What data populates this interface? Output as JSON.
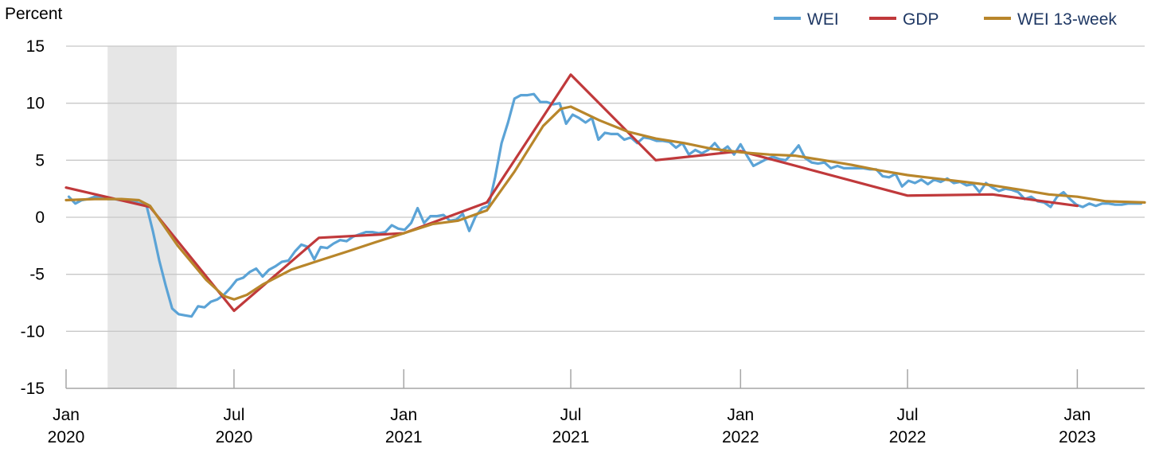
{
  "chart_data": {
    "type": "line",
    "ylabel": "Percent",
    "ylim": [
      -15,
      15
    ],
    "yticks": [
      15,
      10,
      5,
      0,
      -5,
      -10,
      -15
    ],
    "xlim": [
      "2020-01-01",
      "2023-03-15"
    ],
    "xticks": [
      {
        "date": "2020-01-01",
        "month": "Jan",
        "year": "2020"
      },
      {
        "date": "2020-07-01",
        "month": "Jul",
        "year": "2020"
      },
      {
        "date": "2021-01-01",
        "month": "Jan",
        "year": "2021"
      },
      {
        "date": "2021-07-01",
        "month": "Jul",
        "year": "2021"
      },
      {
        "date": "2022-01-01",
        "month": "Jan",
        "year": "2022"
      },
      {
        "date": "2022-07-01",
        "month": "Jul",
        "year": "2022"
      },
      {
        "date": "2023-01-01",
        "month": "Jan",
        "year": "2023"
      }
    ],
    "recession_shading": {
      "start": "2020-02-15",
      "end": "2020-04-30"
    },
    "grid": "horizontal",
    "legend_position": "top-right",
    "series": [
      {
        "name": "WEI",
        "color": "#5ba3d6",
        "points": [
          [
            "2020-01-04",
            1.8
          ],
          [
            "2020-01-11",
            1.2
          ],
          [
            "2020-01-18",
            1.5
          ],
          [
            "2020-01-25",
            1.6
          ],
          [
            "2020-02-01",
            1.8
          ],
          [
            "2020-02-08",
            1.7
          ],
          [
            "2020-02-15",
            1.6
          ],
          [
            "2020-02-22",
            1.6
          ],
          [
            "2020-02-29",
            1.5
          ],
          [
            "2020-03-07",
            1.5
          ],
          [
            "2020-03-14",
            1.4
          ],
          [
            "2020-03-21",
            1.2
          ],
          [
            "2020-03-28",
            1.1
          ],
          [
            "2020-04-04",
            -1.2
          ],
          [
            "2020-04-11",
            -3.8
          ],
          [
            "2020-04-18",
            -6.0
          ],
          [
            "2020-04-25",
            -8.0
          ],
          [
            "2020-05-02",
            -8.5
          ],
          [
            "2020-05-09",
            -8.6
          ],
          [
            "2020-05-16",
            -8.7
          ],
          [
            "2020-05-23",
            -7.8
          ],
          [
            "2020-05-30",
            -7.9
          ],
          [
            "2020-06-06",
            -7.4
          ],
          [
            "2020-06-13",
            -7.2
          ],
          [
            "2020-06-20",
            -6.8
          ],
          [
            "2020-06-27",
            -6.2
          ],
          [
            "2020-07-04",
            -5.5
          ],
          [
            "2020-07-11",
            -5.3
          ],
          [
            "2020-07-18",
            -4.8
          ],
          [
            "2020-07-25",
            -4.5
          ],
          [
            "2020-08-01",
            -5.2
          ],
          [
            "2020-08-08",
            -4.6
          ],
          [
            "2020-08-15",
            -4.3
          ],
          [
            "2020-08-22",
            -3.9
          ],
          [
            "2020-08-29",
            -3.8
          ],
          [
            "2020-09-05",
            -3.0
          ],
          [
            "2020-09-12",
            -2.4
          ],
          [
            "2020-09-19",
            -2.6
          ],
          [
            "2020-09-26",
            -3.7
          ],
          [
            "2020-10-03",
            -2.6
          ],
          [
            "2020-10-10",
            -2.7
          ],
          [
            "2020-10-17",
            -2.3
          ],
          [
            "2020-10-24",
            -2.0
          ],
          [
            "2020-10-31",
            -2.1
          ],
          [
            "2020-11-07",
            -1.7
          ],
          [
            "2020-11-14",
            -1.5
          ],
          [
            "2020-11-21",
            -1.3
          ],
          [
            "2020-11-28",
            -1.3
          ],
          [
            "2020-12-05",
            -1.4
          ],
          [
            "2020-12-12",
            -1.3
          ],
          [
            "2020-12-19",
            -0.7
          ],
          [
            "2020-12-26",
            -1.0
          ],
          [
            "2021-01-02",
            -1.1
          ],
          [
            "2021-01-09",
            -0.5
          ],
          [
            "2021-01-16",
            0.8
          ],
          [
            "2021-01-23",
            -0.5
          ],
          [
            "2021-01-30",
            0.1
          ],
          [
            "2021-02-06",
            0.1
          ],
          [
            "2021-02-13",
            0.2
          ],
          [
            "2021-02-20",
            -0.3
          ],
          [
            "2021-02-27",
            -0.2
          ],
          [
            "2021-03-06",
            0.3
          ],
          [
            "2021-03-13",
            -1.2
          ],
          [
            "2021-03-20",
            0.1
          ],
          [
            "2021-03-27",
            0.8
          ],
          [
            "2021-04-03",
            1.0
          ],
          [
            "2021-04-10",
            3.5
          ],
          [
            "2021-04-17",
            6.5
          ],
          [
            "2021-04-24",
            8.3
          ],
          [
            "2021-05-01",
            10.4
          ],
          [
            "2021-05-08",
            10.7
          ],
          [
            "2021-05-15",
            10.7
          ],
          [
            "2021-05-22",
            10.8
          ],
          [
            "2021-05-29",
            10.1
          ],
          [
            "2021-06-05",
            10.1
          ],
          [
            "2021-06-12",
            9.9
          ],
          [
            "2021-06-19",
            10.0
          ],
          [
            "2021-06-26",
            8.2
          ],
          [
            "2021-07-03",
            9.0
          ],
          [
            "2021-07-10",
            8.7
          ],
          [
            "2021-07-17",
            8.3
          ],
          [
            "2021-07-24",
            8.7
          ],
          [
            "2021-07-31",
            6.8
          ],
          [
            "2021-08-07",
            7.4
          ],
          [
            "2021-08-14",
            7.3
          ],
          [
            "2021-08-21",
            7.3
          ],
          [
            "2021-08-28",
            6.8
          ],
          [
            "2021-09-04",
            7.0
          ],
          [
            "2021-09-11",
            6.5
          ],
          [
            "2021-09-18",
            7.0
          ],
          [
            "2021-09-25",
            6.9
          ],
          [
            "2021-10-02",
            6.7
          ],
          [
            "2021-10-09",
            6.7
          ],
          [
            "2021-10-16",
            6.6
          ],
          [
            "2021-10-23",
            6.1
          ],
          [
            "2021-10-30",
            6.5
          ],
          [
            "2021-11-06",
            5.5
          ],
          [
            "2021-11-13",
            5.9
          ],
          [
            "2021-11-20",
            5.6
          ],
          [
            "2021-11-27",
            5.9
          ],
          [
            "2021-12-04",
            6.5
          ],
          [
            "2021-12-11",
            5.8
          ],
          [
            "2021-12-18",
            6.2
          ],
          [
            "2021-12-25",
            5.5
          ],
          [
            "2022-01-01",
            6.4
          ],
          [
            "2022-01-08",
            5.4
          ],
          [
            "2022-01-15",
            4.5
          ],
          [
            "2022-01-22",
            4.8
          ],
          [
            "2022-01-29",
            5.1
          ],
          [
            "2022-02-05",
            5.3
          ],
          [
            "2022-02-12",
            5.1
          ],
          [
            "2022-02-19",
            5.0
          ],
          [
            "2022-02-26",
            5.6
          ],
          [
            "2022-03-05",
            6.3
          ],
          [
            "2022-03-12",
            5.2
          ],
          [
            "2022-03-19",
            4.8
          ],
          [
            "2022-03-26",
            4.7
          ],
          [
            "2022-04-02",
            4.8
          ],
          [
            "2022-04-09",
            4.3
          ],
          [
            "2022-04-16",
            4.5
          ],
          [
            "2022-04-23",
            4.3
          ],
          [
            "2022-04-30",
            4.3
          ],
          [
            "2022-05-07",
            4.3
          ],
          [
            "2022-05-14",
            4.3
          ],
          [
            "2022-05-21",
            4.2
          ],
          [
            "2022-05-28",
            4.2
          ],
          [
            "2022-06-04",
            3.6
          ],
          [
            "2022-06-11",
            3.5
          ],
          [
            "2022-06-18",
            3.8
          ],
          [
            "2022-06-25",
            2.7
          ],
          [
            "2022-07-02",
            3.2
          ],
          [
            "2022-07-09",
            3.0
          ],
          [
            "2022-07-16",
            3.3
          ],
          [
            "2022-07-23",
            2.9
          ],
          [
            "2022-07-30",
            3.3
          ],
          [
            "2022-08-06",
            3.1
          ],
          [
            "2022-08-13",
            3.4
          ],
          [
            "2022-08-20",
            3.0
          ],
          [
            "2022-08-27",
            3.1
          ],
          [
            "2022-09-03",
            2.8
          ],
          [
            "2022-09-10",
            2.9
          ],
          [
            "2022-09-17",
            2.2
          ],
          [
            "2022-09-24",
            3.0
          ],
          [
            "2022-10-01",
            2.6
          ],
          [
            "2022-10-08",
            2.3
          ],
          [
            "2022-10-15",
            2.5
          ],
          [
            "2022-10-22",
            2.4
          ],
          [
            "2022-10-29",
            2.2
          ],
          [
            "2022-11-05",
            1.6
          ],
          [
            "2022-11-12",
            1.8
          ],
          [
            "2022-11-19",
            1.4
          ],
          [
            "2022-11-26",
            1.3
          ],
          [
            "2022-12-03",
            0.9
          ],
          [
            "2022-12-10",
            1.8
          ],
          [
            "2022-12-17",
            2.2
          ],
          [
            "2022-12-24",
            1.6
          ],
          [
            "2022-12-31",
            1.1
          ],
          [
            "2023-01-07",
            0.9
          ],
          [
            "2023-01-14",
            1.2
          ],
          [
            "2023-01-21",
            1.0
          ],
          [
            "2023-01-28",
            1.2
          ],
          [
            "2023-02-04",
            1.2
          ],
          [
            "2023-02-11",
            1.1
          ],
          [
            "2023-02-18",
            1.1
          ],
          [
            "2023-02-25",
            1.2
          ],
          [
            "2023-03-04",
            1.2
          ],
          [
            "2023-03-11",
            1.2
          ]
        ]
      },
      {
        "name": "GDP",
        "color": "#c0393b",
        "points": [
          [
            "2020-01-01",
            2.6
          ],
          [
            "2020-04-01",
            0.9
          ],
          [
            "2020-07-01",
            -8.2
          ],
          [
            "2020-10-01",
            -1.8
          ],
          [
            "2021-01-01",
            -1.4
          ],
          [
            "2021-04-01",
            1.3
          ],
          [
            "2021-07-01",
            12.5
          ],
          [
            "2021-10-01",
            5.0
          ],
          [
            "2022-01-01",
            5.8
          ],
          [
            "2022-07-01",
            1.9
          ],
          [
            "2022-10-01",
            2.0
          ],
          [
            "2023-01-01",
            1.0
          ]
        ]
      },
      {
        "name": "WEI 13-week",
        "color": "#b8862b",
        "points": [
          [
            "2020-01-01",
            1.5
          ],
          [
            "2020-02-01",
            1.6
          ],
          [
            "2020-03-01",
            1.6
          ],
          [
            "2020-03-20",
            1.5
          ],
          [
            "2020-04-01",
            1.0
          ],
          [
            "2020-05-01",
            -2.5
          ],
          [
            "2020-06-01",
            -5.5
          ],
          [
            "2020-06-20",
            -6.9
          ],
          [
            "2020-07-01",
            -7.2
          ],
          [
            "2020-07-15",
            -6.8
          ],
          [
            "2020-08-01",
            -5.9
          ],
          [
            "2020-09-01",
            -4.6
          ],
          [
            "2020-10-01",
            -3.8
          ],
          [
            "2020-11-01",
            -3.0
          ],
          [
            "2020-12-01",
            -2.2
          ],
          [
            "2021-01-01",
            -1.4
          ],
          [
            "2021-02-01",
            -0.6
          ],
          [
            "2021-03-01",
            -0.3
          ],
          [
            "2021-04-01",
            0.6
          ],
          [
            "2021-05-01",
            4.0
          ],
          [
            "2021-06-01",
            8.0
          ],
          [
            "2021-06-20",
            9.5
          ],
          [
            "2021-07-01",
            9.7
          ],
          [
            "2021-08-01",
            8.5
          ],
          [
            "2021-09-01",
            7.5
          ],
          [
            "2021-10-01",
            6.9
          ],
          [
            "2021-11-01",
            6.5
          ],
          [
            "2021-12-01",
            6.0
          ],
          [
            "2022-01-01",
            5.7
          ],
          [
            "2022-02-01",
            5.5
          ],
          [
            "2022-03-01",
            5.4
          ],
          [
            "2022-04-01",
            5.0
          ],
          [
            "2022-05-01",
            4.6
          ],
          [
            "2022-06-01",
            4.1
          ],
          [
            "2022-07-01",
            3.7
          ],
          [
            "2022-08-01",
            3.4
          ],
          [
            "2022-09-01",
            3.1
          ],
          [
            "2022-10-01",
            2.8
          ],
          [
            "2022-11-01",
            2.4
          ],
          [
            "2022-12-01",
            2.0
          ],
          [
            "2023-01-01",
            1.8
          ],
          [
            "2023-02-01",
            1.4
          ],
          [
            "2023-03-15",
            1.3
          ]
        ]
      }
    ]
  }
}
